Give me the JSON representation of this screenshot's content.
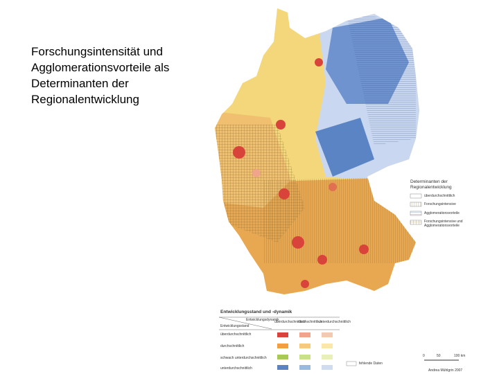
{
  "slide": {
    "title_lines": [
      "Forschungsintensität und",
      "Agglomerationsvorteile als",
      "Determinanten der",
      "Regionalentwicklung"
    ]
  },
  "map_legend": {
    "title_lines": [
      "Determinanten der",
      "Regionalentwicklung"
    ],
    "items": [
      "überdurchschnittlich",
      "Forschungsintensive",
      "Agglomerationsvorteile",
      "Forschungsintensive und",
      "Agglomerationsvorteile"
    ]
  },
  "table_legend": {
    "heading": "Entwicklungsstand und -dynamik",
    "corner_top": "Entwicklungsdynamik",
    "corner_left": "Entwicklungsstand",
    "columns": [
      "überdurchschnittlich",
      "durchschnittlich",
      "unterdurchschnittlich"
    ],
    "rows": [
      "überdurchschnittlich",
      "durchschnittlich",
      "schwach unterdurchschnittlich",
      "unterdurchschnittlich"
    ],
    "missing": "fehlende Daten"
  },
  "scale": {
    "labels": [
      "0",
      "50",
      "100 km"
    ],
    "credit": "Andrea Mühlgrin 2007"
  }
}
